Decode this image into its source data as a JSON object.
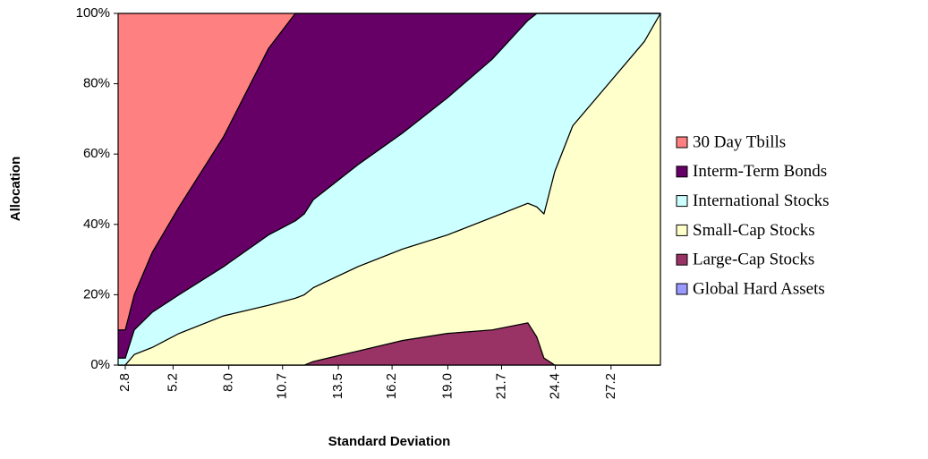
{
  "chart_data": {
    "type": "stacked-area",
    "x_label": "Standard Deviation",
    "y_label": "Allocation",
    "x": [
      2.44,
      2.8,
      3.25,
      4.15,
      5.5,
      7.74,
      9.99,
      11.34,
      11.79,
      12.24,
      14.49,
      16.73,
      18.98,
      21.23,
      23.02,
      23.47,
      23.83,
      24.37,
      25.27,
      27.07,
      28.87,
      29.68
    ],
    "series": [
      {
        "name": "30 Day Tbills",
        "color": "#ff8080",
        "values": [
          90,
          90,
          80,
          68,
          55,
          35,
          10,
          0,
          0,
          0,
          0,
          0,
          0,
          0,
          0,
          0,
          0,
          0,
          0,
          0,
          0,
          0
        ]
      },
      {
        "name": "Interm-Term Bonds",
        "color": "#660066",
        "values": [
          8,
          8,
          10,
          17,
          25,
          37,
          53,
          59,
          57,
          53,
          43,
          34,
          24,
          13,
          2,
          0,
          0,
          0,
          0,
          0,
          0,
          0
        ]
      },
      {
        "name": "International Stocks",
        "color": "#ccffff",
        "values": [
          2,
          2,
          7,
          10,
          11,
          14,
          20,
          22,
          23,
          25,
          29,
          33,
          39,
          45,
          52,
          55,
          57,
          45,
          32,
          20,
          8,
          0
        ]
      },
      {
        "name": "Small-Cap Stocks",
        "color": "#ffffcc",
        "values": [
          0,
          0,
          3,
          5,
          9,
          14,
          17,
          19,
          20,
          21,
          24,
          26,
          28,
          32,
          34,
          37,
          41,
          55,
          68,
          80,
          92,
          100
        ]
      },
      {
        "name": "Large-Cap Stocks",
        "color": "#993366",
        "values": [
          0,
          0,
          0,
          0,
          0,
          0,
          0,
          0,
          0,
          1,
          4,
          7,
          9,
          10,
          12,
          8,
          2,
          0,
          0,
          0,
          0,
          0
        ]
      },
      {
        "name": "Global Hard Assets",
        "color": "#9999ff",
        "values": [
          0,
          0,
          0,
          0,
          0,
          0,
          0,
          0,
          0,
          0,
          0,
          0,
          0,
          0,
          0,
          0,
          0,
          0,
          0,
          0,
          0,
          0
        ]
      }
    ],
    "xlim": [
      2.44,
      29.68
    ],
    "xticks": [
      2.8,
      5.2,
      {
        "value": 8,
        "label": "8.0"
      },
      10.7,
      13.5,
      16.2,
      {
        "value": 19,
        "label": "19.0"
      },
      21.7,
      24.4,
      27.2
    ],
    "ylim": [
      0,
      100
    ],
    "yticks": [
      {
        "value": 0,
        "label": "0%"
      },
      {
        "value": 20,
        "label": "20%"
      },
      {
        "value": 40,
        "label": "40%"
      },
      {
        "value": 60,
        "label": "60%"
      },
      {
        "value": 80,
        "label": "80%"
      },
      {
        "value": 100,
        "label": "100%"
      }
    ],
    "legend_position": "right"
  }
}
